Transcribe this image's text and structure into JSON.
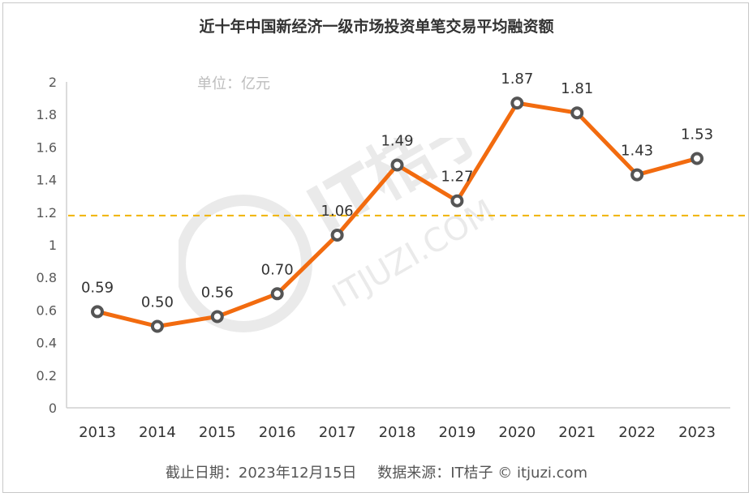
{
  "chart_data": {
    "type": "line",
    "title": "近十年中国新经济一级市场投资单笔交易平均融资额",
    "unit_label": "单位：亿元",
    "categories": [
      "2013",
      "2014",
      "2015",
      "2016",
      "2017",
      "2018",
      "2019",
      "2020",
      "2021",
      "2022",
      "2023"
    ],
    "series": [
      {
        "values": [
          0.59,
          0.5,
          0.56,
          0.7,
          1.06,
          1.49,
          1.27,
          1.87,
          1.81,
          1.43,
          1.53
        ]
      }
    ],
    "data_labels": [
      "0.59",
      "0.50",
      "0.56",
      "0.70",
      "1.06",
      "1.49",
      "1.27",
      "1.87",
      "1.81",
      "1.43",
      "1.53"
    ],
    "reference_line": {
      "value": 1.18,
      "style": "dashed",
      "color": "#f0b400"
    },
    "ylim": [
      0,
      2
    ],
    "yticks": [
      "0",
      "0.2",
      "0.4",
      "0.6",
      "0.8",
      "1",
      "1.2",
      "1.4",
      "1.6",
      "1.8",
      "2"
    ],
    "grid": false,
    "line_color": "#f26b0f",
    "marker_color": "#555555"
  },
  "footer": {
    "date": "截止日期：2023年12月15日",
    "source": "数据来源：IT桔子 © itjuzi.com"
  },
  "watermark": {
    "brand": "IT桔子",
    "url": "ITJUZI.COM"
  }
}
